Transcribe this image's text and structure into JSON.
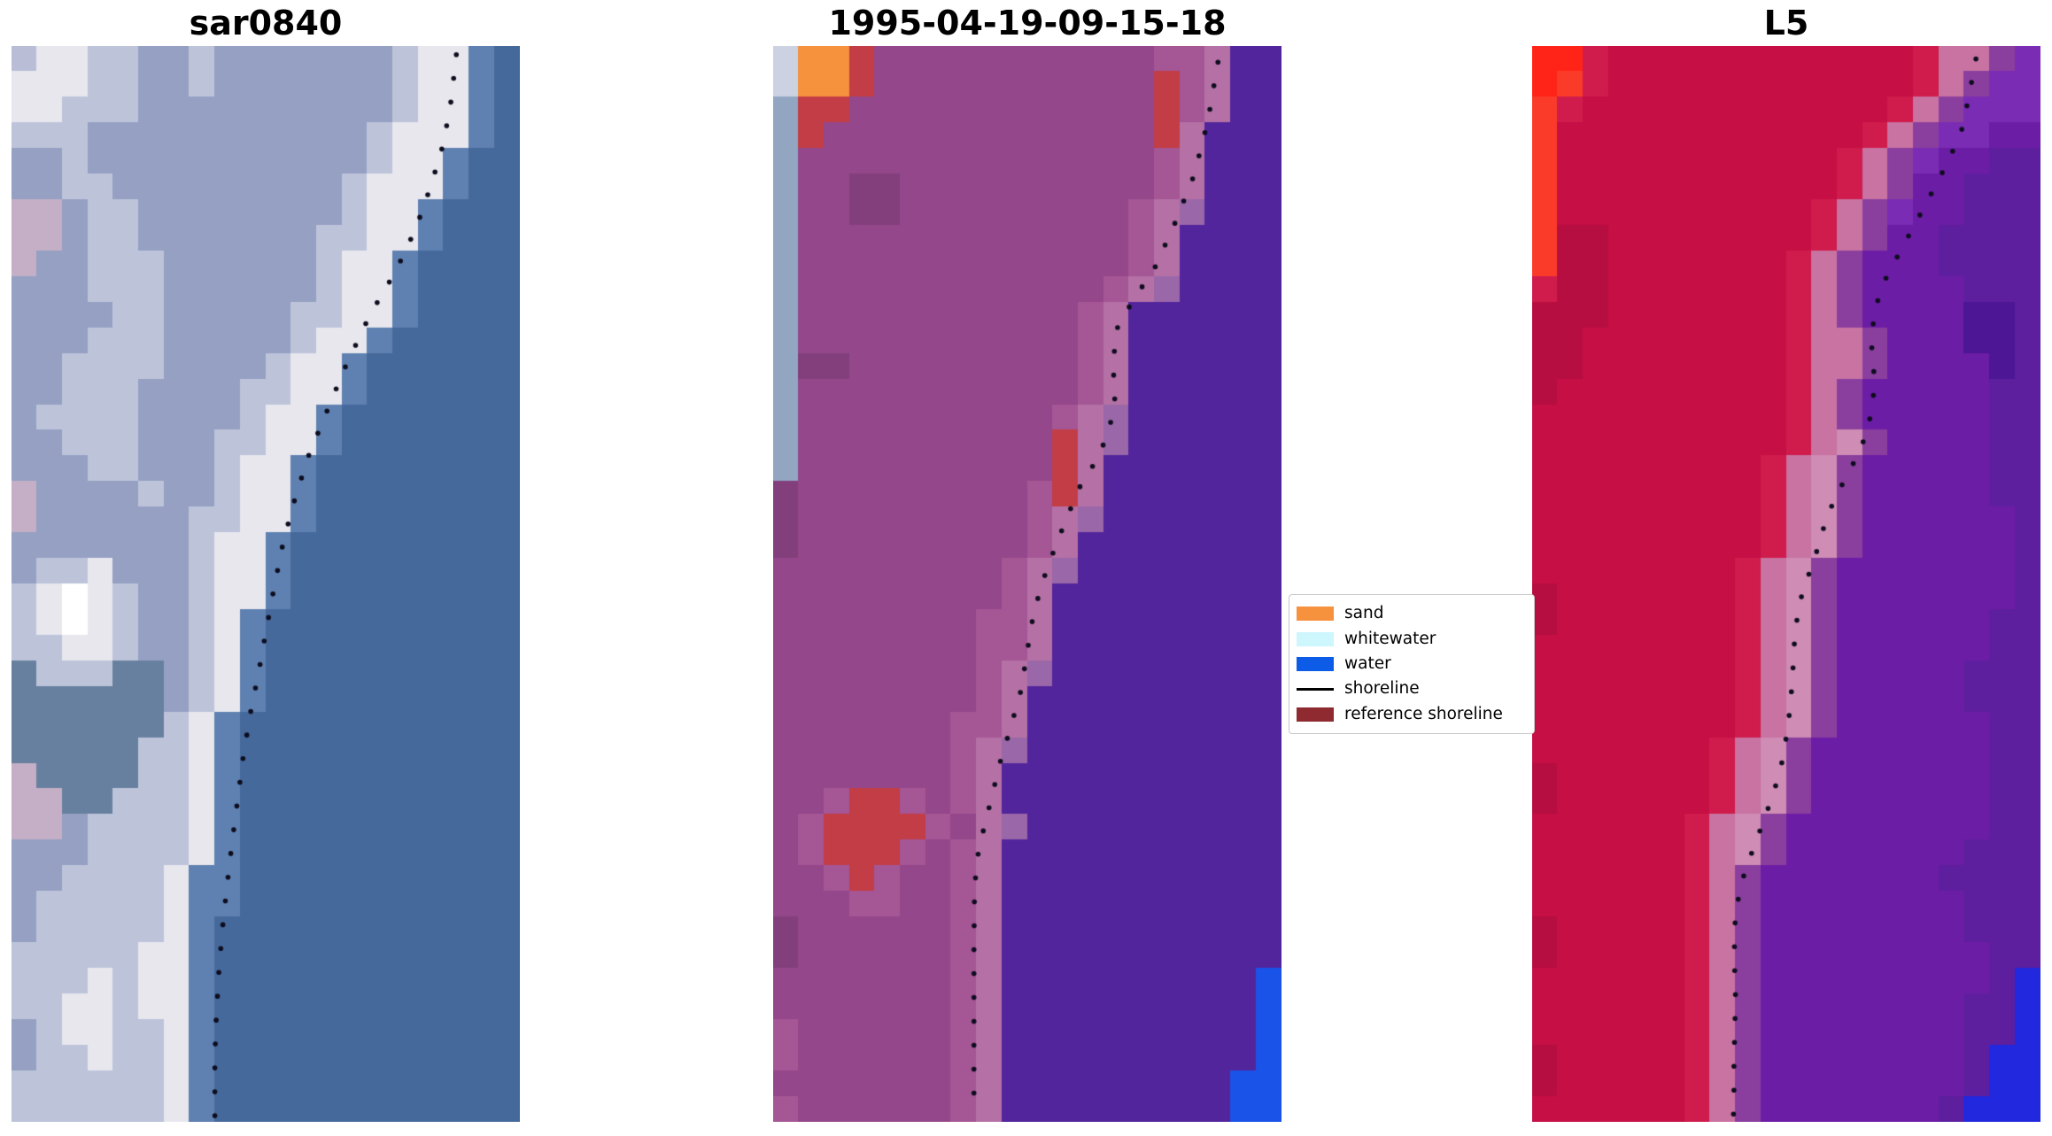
{
  "figure": {
    "background": "#ffffff"
  },
  "shoreline_style": {
    "dot_color": "#0d0d1e",
    "dot_radius": 2.8,
    "dot_spacing": 27
  },
  "legend": {
    "items": [
      {
        "label": "sand",
        "color": "#f6913e",
        "swatch": "patch"
      },
      {
        "label": "whitewater",
        "color": "#cdf6fd",
        "swatch": "patch"
      },
      {
        "label": "water",
        "color": "#0c5ce8",
        "swatch": "patch"
      },
      {
        "label": "shoreline",
        "color": "#000000",
        "swatch": "line"
      },
      {
        "label": "reference shoreline",
        "color": "#8e2a30",
        "swatch": "patch"
      }
    ]
  },
  "chart_data": [
    {
      "type": "image",
      "title": "sar0840",
      "description": "SAR backscatter image, blue-gray tones, detected shoreline dotted",
      "palette": {
        "W": "#ffffff",
        "E": "#e8e7ee",
        "L": "#bdc4da",
        "M": "#95a0c2",
        "P": "#c4afc6",
        "T": "#5f81b1",
        "B": "#46699c",
        "g": "#b9bdd6",
        "G": "#68809f"
      },
      "pixel_rows": [
        "gEELLMMLMMMMMMMLEETB",
        "EEELLMMLMMMMMMMLEETB",
        "EELLLMMMMMMMMMMLEETB",
        "LLLMMMMMMMMMMMLEEETB",
        "MMLMMMMMMMMMMMLEETBB",
        "MMLLMMMMMMMMMLEEETBB",
        "PPMLLMMMMMMMMLEETBBB",
        "PPMLLMMMMMMMLLEETBBB",
        "PMMLLLMMMMMMLEETBBBB",
        "MMMLLLMMMMMMLEETBBBB",
        "MMMMLLMMMMMLLEETBBBB",
        "MMMLLLMMMMMLEETBBBBB",
        "MMLLLLMMMMLEETBBBBBB",
        "MMLLLMMMMLLEETBBBBBB",
        "MLLLLMMMMLEETBBBBBBB",
        "MMLLLMMMLLEETBBBBBBB",
        "MMMLLMMMLEETBBBBBBBB",
        "PMMMMLMMLEETBBBBBBBB",
        "PMMMMMMLLEETBBBBBBBB",
        "MMMMMMMLEETBBBBBBBBB",
        "MLLEMMMLEETBBBBBBBBB",
        "LEWELMMLEETBBBBBBBBB",
        "LEWELMMLETBBBBBBBBBB",
        "LLEELMMLETBBBBBBBBBB",
        "GLLLGGMLETBBBBBBBBBB",
        "GGGGGGMLETBBBBBBBBBB",
        "GGGGGGLETBBBBBBBBBBB",
        "GGGGGLLETBBBBBBBBBBB",
        "PGGGGLLETBBBBBBBBBBB",
        "PPGGLLLETBBBBBBBBBBB",
        "PPMLLLLETBBBBBBBBBBB",
        "MMMLLLLETBBBBBBBBBBB",
        "MMLLLLETTBBBBBBBBBBB",
        "MLLLLLETTBBBBBBBBBBB",
        "MLLLLLETBBBBBBBBBBBB",
        "LLLLLEETBBBBBBBBBBBB",
        "LLLELEETBBBBBBBBBBBB",
        "LLEELEETBBBBBBBBBBBB",
        "MLEELLETBBBBBBBBBBBB",
        "MLLELLETBBBBBBBBBBBB",
        "LLLLLLETBBBBBBBBBBBB",
        "LLLLLLETBBBBBBBBBBBB"
      ],
      "shoreline_path": [
        [
          0.875,
          0.008
        ],
        [
          0.865,
          0.05
        ],
        [
          0.85,
          0.09
        ],
        [
          0.825,
          0.13
        ],
        [
          0.795,
          0.17
        ],
        [
          0.755,
          0.21
        ],
        [
          0.705,
          0.25
        ],
        [
          0.655,
          0.3
        ],
        [
          0.62,
          0.34
        ],
        [
          0.585,
          0.38
        ],
        [
          0.558,
          0.42
        ],
        [
          0.535,
          0.46
        ],
        [
          0.518,
          0.5
        ],
        [
          0.502,
          0.54
        ],
        [
          0.487,
          0.58
        ],
        [
          0.47,
          0.62
        ],
        [
          0.456,
          0.66
        ],
        [
          0.445,
          0.7
        ],
        [
          0.434,
          0.74
        ],
        [
          0.424,
          0.78
        ],
        [
          0.415,
          0.82
        ],
        [
          0.408,
          0.86
        ],
        [
          0.403,
          0.9
        ],
        [
          0.4,
          0.94
        ],
        [
          0.4,
          0.995
        ]
      ]
    },
    {
      "type": "image",
      "title": "1995-04-19-09-15-18",
      "description": "Classified optical image: magenta land, violet water, orange sand, red reference shoreline patches, blue water pixels, gray whitewater strip",
      "palette": {
        "G": "#ccd2e2",
        "o": "#f6913e",
        "r": "#c23d45",
        "m": "#94478a",
        "n": "#833f7c",
        "l": "#a45695",
        "h": "#b571a5",
        "t": "#9a67a8",
        "w": "#52259c",
        "g": "#92a6c2",
        "u": "#1a53e8"
      },
      "pixel_rows": [
        "Goormmmmmmmmmmmllhww",
        "Goormmmmmmmmmmmrlhww",
        "grrmmmmmmmmmmmmrlhww",
        "grmmmmmmmmmmmmmrhwww",
        "gmmmmmmmmmmmmmmlhwww",
        "gmmnnmmmmmmmmmmlhwww",
        "gmmnnmmmmmmmmmlhtwww",
        "gmmmmmmmmmmmmmlhwwww",
        "gmmmmmmmmmmmmmlhwwww",
        "gmmmmmmmmmmmmlhtwwww",
        "gmmmmmmmmmmmlhwwwwww",
        "gmmmmmmmmmmmlhwwwwww",
        "gnnmmmmmmmmmlhwwwwww",
        "gmmmmmmmmmmmlhwwwwww",
        "gmmmmmmmmmmlhtwwwwww",
        "gmmmmmmmmmmrhtwwwwww",
        "gmmmmmmmmmmrhwwwwwww",
        "nmmmmmmmmmlrhwwwwwww",
        "nmmmmmmmmmlhtwwwwwww",
        "nmmmmmmmmmlhwwwwwwww",
        "mmmmmmmmmlhtwwwwwwww",
        "mmmmmmmmmlhwwwwwwwww",
        "mmmmmmmmllhwwwwwwwww",
        "mmmmmmmmllhwwwwwwwww",
        "mmmmmmmmlhtwwwwwwwww",
        "mmmmmmmmlhwwwwwwwwww",
        "mmmmmmmllhwwwwwwwwww",
        "mmmmmmmlhtwwwwwwwwww",
        "mmmmmmmlhwwwwwwwwwww",
        "mmlrrlmlhwwwwwwwwwww",
        "mlrrrrlmhtwwwwwwwwww",
        "mlrrrlmlhwwwwwwwwwww",
        "mmlrlmmlhwwwwwwwwwww",
        "mmmllmmlhwwwwwwwwwww",
        "nmmmmmmlhwwwwwwwwwww",
        "nmmmmmmlhwwwwwwwwwww",
        "mmmmmmmlhwwwwwwwwwwu",
        "mmmmmmmlhwwwwwwwwwwu",
        "lmmmmmmlhwwwwwwwwwwu",
        "lmmmmmmlhwwwwwwwwwwu",
        "mmmmmmmlhwwwwwwwwwuu",
        "lmmmmmmlhwwwwwwwwwuu"
      ],
      "shoreline_path": [
        [
          0.875,
          0.015
        ],
        [
          0.855,
          0.07
        ],
        [
          0.828,
          0.12
        ],
        [
          0.79,
          0.165
        ],
        [
          0.752,
          0.205
        ],
        [
          0.71,
          0.235
        ],
        [
          0.678,
          0.26
        ],
        [
          0.668,
          0.295
        ],
        [
          0.673,
          0.325
        ],
        [
          0.662,
          0.355
        ],
        [
          0.64,
          0.382
        ],
        [
          0.605,
          0.408
        ],
        [
          0.578,
          0.438
        ],
        [
          0.553,
          0.468
        ],
        [
          0.53,
          0.498
        ],
        [
          0.512,
          0.528
        ],
        [
          0.5,
          0.562
        ],
        [
          0.488,
          0.598
        ],
        [
          0.468,
          0.632
        ],
        [
          0.447,
          0.665
        ],
        [
          0.43,
          0.698
        ],
        [
          0.414,
          0.728
        ],
        [
          0.4,
          0.758
        ],
        [
          0.396,
          0.79
        ],
        [
          0.395,
          0.84
        ],
        [
          0.395,
          0.89
        ],
        [
          0.395,
          0.94
        ],
        [
          0.395,
          0.995
        ]
      ]
    },
    {
      "type": "image",
      "title": "L5",
      "description": "Landsat 5 false-color image: crimson land, purple water, bright red left strip, pink surf zone, blue pixels bottom right",
      "palette": {
        "f": "#ff2417",
        "F": "#fa3b2a",
        "K": "#cf1c4c",
        "R": "#c60f45",
        "Q": "#b70e41",
        "P": "#c873a2",
        "p": "#cf8cb4",
        "T": "#8a3f9e",
        "v": "#7b2cb4",
        "V": "#6c1da5",
        "d": "#5e1f9e",
        "D": "#4c1694",
        "B": "#2228dd"
      },
      "pixel_rows": [
        "ffKRRRRRRRRRRRRKPPTv",
        "fFKRRRRRRRRRRRRKPTvv",
        "FKRRRRRRRRRRRRKPTvvv",
        "FRRRRRRRRRRRRKPTvvVV",
        "FRRRRRRRRRRRKPTvVVdd",
        "FRRRRRRRRRRRKPTVVddd",
        "FRRRRRRRRRRKPTvVVddd",
        "FQQRRRRRRRRKPTVVdddd",
        "FQQRRRRRRRKPTVVVdddd",
        "KQQRRRRRRRKPTVVVVddd",
        "QQQRRRRRRRKPTVVVVDDd",
        "QQRRRRRRRRKPPTVVVDDd",
        "QQRRRRRRRRKPPTVVVVDd",
        "QRRRRRRRRRKPTVVVVVdd",
        "RRRRRRRRRRKPTVVVVVdd",
        "RRRRRRRRRRKPpTVVVVdd",
        "RRRRRRRRRKPpTVVVVVdd",
        "RRRRRRRRRKPpTVVVVVdd",
        "RRRRRRRRRKPpTVVVVVVd",
        "RRRRRRRRRKPpTVVVVVVd",
        "RRRRRRRRKPpTVVVVVVVd",
        "QRRRRRRRKPpTVVVVVVVd",
        "QRRRRRRRKPpTVVVVVVdd",
        "RRRRRRRRKPpTVVVVVVdd",
        "RRRRRRRRKPpTVVVVVddd",
        "RRRRRRRRKPpTVVVVVddd",
        "RRRRRRRRKPpTVVVVVVdd",
        "RRRRRRRKPpTVVVVVVVdd",
        "QRRRRRRKPpTVVVVVVVdd",
        "QRRRRRRKPpTVVVVVVVdd",
        "RRRRRRKPpTVVVVVVVVdd",
        "RRRRRRKPpTVVVVVVVddd",
        "RRRRRRKPTVVVVVVVdddd",
        "RRRRRRKPTVVVVVVVVddd",
        "QRRRRRKPTVVVVVVVVddd",
        "QRRRRRKPTVVVVVVVVVdd",
        "RRRRRRKPTVVVVVVVVVdB",
        "RRRRRRKPTVVVVVVVVddB",
        "RRRRRRKPTVVVVVVVVddB",
        "QRRRRRKPTVVVVVVVVdBB",
        "QRRRRRKPTVVVVVVVVdBB",
        "RRRRRRKPTVVVVVVVdBBB"
      ],
      "shoreline_path": [
        [
          0.873,
          0.012
        ],
        [
          0.858,
          0.05
        ],
        [
          0.843,
          0.082
        ],
        [
          0.813,
          0.112
        ],
        [
          0.78,
          0.142
        ],
        [
          0.748,
          0.17
        ],
        [
          0.716,
          0.198
        ],
        [
          0.688,
          0.223
        ],
        [
          0.672,
          0.25
        ],
        [
          0.668,
          0.282
        ],
        [
          0.674,
          0.312
        ],
        [
          0.668,
          0.34
        ],
        [
          0.653,
          0.366
        ],
        [
          0.628,
          0.392
        ],
        [
          0.6,
          0.416
        ],
        [
          0.578,
          0.44
        ],
        [
          0.564,
          0.464
        ],
        [
          0.545,
          0.49
        ],
        [
          0.527,
          0.516
        ],
        [
          0.517,
          0.545
        ],
        [
          0.513,
          0.58
        ],
        [
          0.508,
          0.614
        ],
        [
          0.499,
          0.645
        ],
        [
          0.489,
          0.672
        ],
        [
          0.473,
          0.697
        ],
        [
          0.454,
          0.722
        ],
        [
          0.435,
          0.746
        ],
        [
          0.417,
          0.77
        ],
        [
          0.405,
          0.794
        ],
        [
          0.398,
          0.82
        ],
        [
          0.398,
          0.852
        ],
        [
          0.4,
          0.882
        ],
        [
          0.399,
          0.912
        ],
        [
          0.397,
          0.942
        ],
        [
          0.397,
          0.97
        ],
        [
          0.396,
          0.995
        ]
      ]
    }
  ]
}
